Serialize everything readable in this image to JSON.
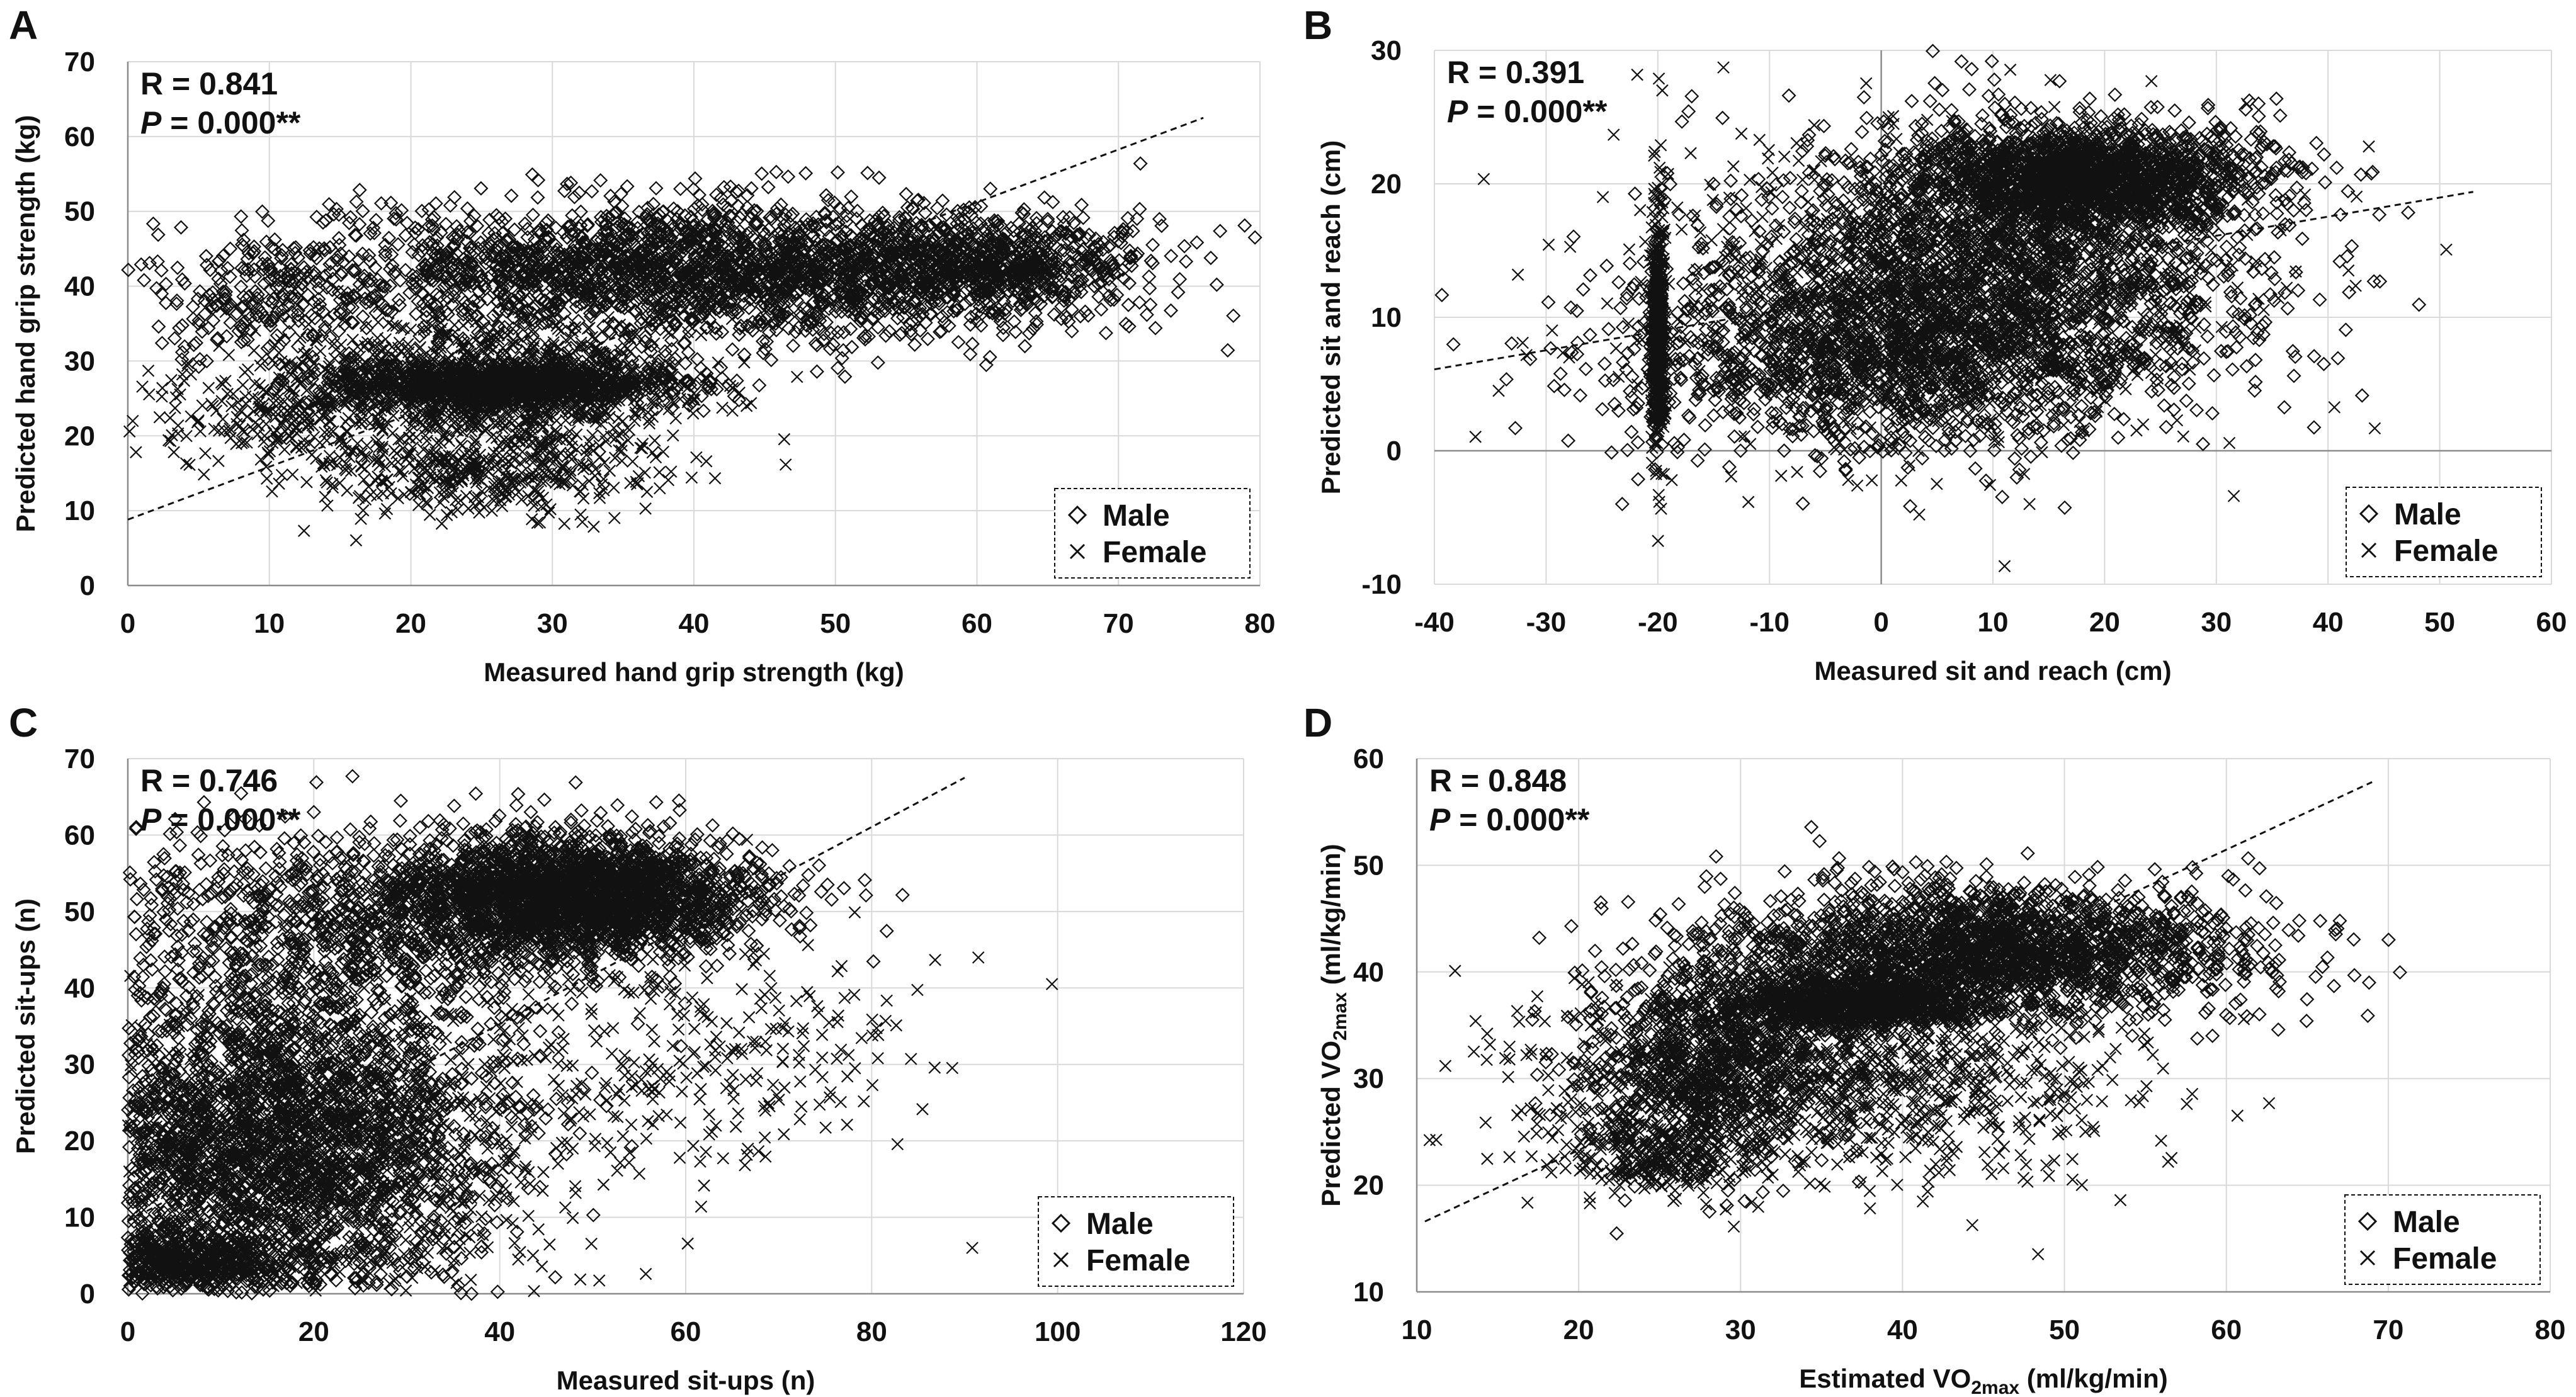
{
  "chart_data": [
    {
      "type": "scatter",
      "panel": "A",
      "xlabel": "Measured hand grip strength (kg)",
      "ylabel": "Predicted hand grip strength (kg)",
      "xlim": [
        0,
        80
      ],
      "ylim": [
        0,
        70
      ],
      "xticks": [
        0,
        10,
        20,
        30,
        40,
        50,
        60,
        70,
        80
      ],
      "yticks": [
        0,
        10,
        20,
        30,
        40,
        50,
        60,
        70
      ],
      "r_text": "R = 0.841",
      "p_label": "P",
      "p_value": " = 0.000**",
      "fit_line": [
        [
          0,
          8.8
        ],
        [
          76,
          62.5
        ]
      ],
      "legend": [
        "Male",
        "Female"
      ],
      "series": [
        {
          "name": "Male",
          "marker": "diamond",
          "clusters": [
            {
              "cx": 40,
              "cy": 42,
              "sx": 14,
              "sy": 4.5,
              "n": 2400
            },
            {
              "cx": 60,
              "cy": 43,
              "sx": 6,
              "sy": 3.2,
              "n": 700
            },
            {
              "cx": 10,
              "cy": 38,
              "sx": 4,
              "sy": 4,
              "n": 200
            },
            {
              "cx": 27,
              "cy": 27,
              "sx": 6,
              "sy": 1.6,
              "n": 1100
            }
          ]
        },
        {
          "name": "Female",
          "marker": "x",
          "clusters": [
            {
              "cx": 25,
              "cy": 26,
              "sx": 7,
              "sy": 5,
              "n": 1000
            },
            {
              "cx": 10,
              "cy": 23,
              "sx": 4,
              "sy": 4,
              "n": 200
            },
            {
              "cx": 25,
              "cy": 15,
              "sx": 6,
              "sy": 3,
              "n": 350
            }
          ]
        }
      ]
    },
    {
      "type": "scatter",
      "panel": "B",
      "xlabel": "Measured sit and reach (cm)",
      "ylabel": "Predicted sit and reach (cm)",
      "xlim": [
        -40,
        60
      ],
      "ylim": [
        -10,
        30
      ],
      "xticks": [
        -40,
        -30,
        -20,
        -10,
        0,
        10,
        20,
        30,
        40,
        50,
        60
      ],
      "yticks": [
        -10,
        0,
        10,
        20,
        30
      ],
      "r_text": "R = 0.391",
      "p_label": "P",
      "p_value": " = 0.000**",
      "fit_line": [
        [
          -40,
          6.1
        ],
        [
          53,
          19.4
        ]
      ],
      "legend": [
        "Male",
        "Female"
      ],
      "series": [
        {
          "name": "Male",
          "marker": "diamond",
          "clusters": [
            {
              "cx": 18,
              "cy": 20.5,
              "sx": 8,
              "sy": 2,
              "n": 1800
            },
            {
              "cx": 10,
              "cy": 14,
              "sx": 12,
              "sy": 5,
              "n": 1800
            },
            {
              "cx": 0,
              "cy": 7,
              "sx": 12,
              "sy": 3.5,
              "n": 1400
            },
            {
              "cx": -20,
              "cy": 8,
              "sx": 0.3,
              "sy": 3,
              "n": 300
            }
          ]
        },
        {
          "name": "Female",
          "marker": "x",
          "clusters": [
            {
              "cx": 5,
              "cy": 12,
              "sx": 14,
              "sy": 6,
              "n": 800
            },
            {
              "cx": -20,
              "cy": 10,
              "sx": 0.3,
              "sy": 6,
              "n": 250
            }
          ]
        }
      ]
    },
    {
      "type": "scatter",
      "panel": "C",
      "xlabel": "Measured sit-ups (n)",
      "ylabel": "Predicted sit-ups (n)",
      "xlim": [
        0,
        120
      ],
      "ylim": [
        0,
        70
      ],
      "xticks": [
        0,
        20,
        40,
        60,
        80,
        100,
        120
      ],
      "yticks": [
        0,
        10,
        20,
        30,
        40,
        50,
        60,
        70
      ],
      "r_text": "R = 0.746",
      "p_label": "P",
      "p_value": " = 0.000**",
      "fit_line": [
        [
          0,
          9.5
        ],
        [
          90,
          67.5
        ]
      ],
      "legend": [
        "Male",
        "Female"
      ],
      "series": [
        {
          "name": "Male",
          "marker": "diamond",
          "clusters": [
            {
              "cx": 48,
              "cy": 52,
              "sx": 10,
              "sy": 4,
              "n": 2600
            },
            {
              "cx": 20,
              "cy": 47,
              "sx": 14,
              "sy": 7,
              "n": 1000
            },
            {
              "cx": 15,
              "cy": 20,
              "sx": 12,
              "sy": 10,
              "n": 2400
            },
            {
              "cx": 5,
              "cy": 4,
              "sx": 8,
              "sy": 2,
              "n": 700
            }
          ]
        },
        {
          "name": "Female",
          "marker": "x",
          "clusters": [
            {
              "cx": 20,
              "cy": 18,
              "sx": 14,
              "sy": 10,
              "n": 1000
            },
            {
              "cx": 60,
              "cy": 32,
              "sx": 12,
              "sy": 8,
              "n": 300
            }
          ]
        }
      ]
    },
    {
      "type": "scatter",
      "panel": "D",
      "xlabel": "Estimated VO",
      "xlabel_sub": "2max",
      "xlabel_suffix": " (ml/kg/min)",
      "ylabel": "Predicted VO",
      "ylabel_sub": "2max",
      "ylabel_suffix": " (ml/kg/min)",
      "xlim": [
        10,
        80
      ],
      "ylim": [
        10,
        60
      ],
      "xticks": [
        10,
        20,
        30,
        40,
        50,
        60,
        70,
        80
      ],
      "yticks": [
        10,
        20,
        30,
        40,
        50,
        60
      ],
      "r_text": "R = 0.848",
      "p_label": "P",
      "p_value": " = 0.000**",
      "fit_line": [
        [
          10.5,
          16.6
        ],
        [
          69,
          57.8
        ]
      ],
      "legend": [
        "Male",
        "Female"
      ],
      "series": [
        {
          "name": "Male",
          "marker": "diamond",
          "clusters": [
            {
              "cx": 45,
              "cy": 42,
              "sx": 8,
              "sy": 3,
              "n": 2200
            },
            {
              "cx": 37,
              "cy": 37,
              "sx": 4,
              "sy": 1.2,
              "n": 900
            },
            {
              "cx": 28,
              "cy": 32,
              "sx": 4,
              "sy": 5,
              "n": 800
            }
          ]
        },
        {
          "name": "Female",
          "marker": "x",
          "clusters": [
            {
              "cx": 35,
              "cy": 30,
              "sx": 9,
              "sy": 4.5,
              "n": 1100
            },
            {
              "cx": 25,
              "cy": 23,
              "sx": 3,
              "sy": 2,
              "n": 300
            }
          ]
        }
      ]
    }
  ]
}
